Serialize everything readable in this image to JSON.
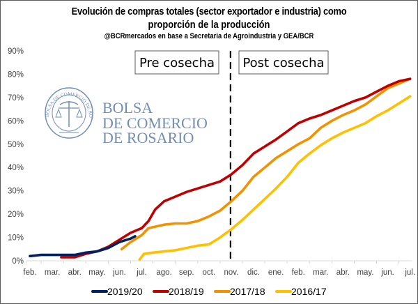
{
  "chart_data": {
    "type": "line",
    "title": "Evolución de compras totales (sector exportador e industria) como",
    "title_line2": "proporción de la producción",
    "subtitle": "@BCRmercados en base a Secretaria de Agroindustria y GEA/BCR",
    "xlabel": "",
    "ylabel": "",
    "ylim": [
      0,
      90
    ],
    "yticks": [
      "0%",
      "10%",
      "20%",
      "30%",
      "40%",
      "50%",
      "60%",
      "70%",
      "80%",
      "90%"
    ],
    "categories": [
      "feb.",
      "mar.",
      "abr.",
      "may.",
      "jun.",
      "jul.",
      "ago.",
      "sep.",
      "oct.",
      "nov.",
      "dic.",
      "ene.",
      "feb.",
      "mar.",
      "abr.",
      "may.",
      "jun.",
      "jul."
    ],
    "grid": false,
    "legend_position": "bottom",
    "annotations": {
      "pre": "Pre cosecha",
      "post": "Post cosecha",
      "divider_category_index": 9
    },
    "series": [
      {
        "name": "2019/20",
        "color": "#002060",
        "points": [
          [
            0,
            2
          ],
          [
            0.5,
            2.5
          ],
          [
            1,
            2.5
          ],
          [
            2,
            2.5
          ],
          [
            2.5,
            3.5
          ],
          [
            3,
            4
          ],
          [
            3.5,
            5.5
          ],
          [
            4,
            8
          ],
          [
            4.5,
            9.5
          ],
          [
            4.7,
            10.5
          ]
        ]
      },
      {
        "name": "2018/19",
        "color": "#C00000",
        "points": [
          [
            1.4,
            1.5
          ],
          [
            2,
            1.5
          ],
          [
            2.5,
            3
          ],
          [
            3,
            4
          ],
          [
            3.5,
            6
          ],
          [
            4,
            9
          ],
          [
            4.5,
            12
          ],
          [
            5,
            14
          ],
          [
            5.3,
            17
          ],
          [
            5.6,
            22
          ],
          [
            6,
            25.5
          ],
          [
            6.5,
            27.5
          ],
          [
            7,
            29.5
          ],
          [
            7.5,
            31
          ],
          [
            8,
            32.5
          ],
          [
            8.5,
            34
          ],
          [
            9,
            37
          ],
          [
            9.5,
            41
          ],
          [
            10,
            46
          ],
          [
            10.5,
            49
          ],
          [
            11,
            52
          ],
          [
            11.5,
            55.5
          ],
          [
            12,
            59
          ],
          [
            12.5,
            61
          ],
          [
            13,
            62.5
          ],
          [
            13.5,
            64.5
          ],
          [
            14,
            66.5
          ],
          [
            14.5,
            68.5
          ],
          [
            15,
            70
          ],
          [
            15.5,
            72.5
          ],
          [
            16,
            75
          ],
          [
            16.5,
            77
          ],
          [
            17,
            78
          ]
        ]
      },
      {
        "name": "2017/18",
        "color": "#F39200",
        "points": [
          [
            4.1,
            5
          ],
          [
            4.5,
            8
          ],
          [
            5,
            11
          ],
          [
            5.3,
            14
          ],
          [
            6,
            15.5
          ],
          [
            6.5,
            16
          ],
          [
            7,
            16
          ],
          [
            7.5,
            17
          ],
          [
            8,
            19
          ],
          [
            8.5,
            21.5
          ],
          [
            9,
            25.5
          ],
          [
            9.5,
            30
          ],
          [
            10,
            36
          ],
          [
            10.5,
            40
          ],
          [
            11,
            44
          ],
          [
            11.5,
            47
          ],
          [
            12,
            50
          ],
          [
            12.5,
            52.5
          ],
          [
            13,
            57
          ],
          [
            13.5,
            60
          ],
          [
            14,
            62.5
          ],
          [
            14.5,
            64.5
          ],
          [
            15,
            67
          ],
          [
            15.5,
            70.5
          ],
          [
            16,
            74
          ],
          [
            16.5,
            76
          ],
          [
            17,
            78
          ]
        ]
      },
      {
        "name": "2016/17",
        "color": "#FFC000",
        "points": [
          [
            4.9,
            0.5
          ],
          [
            5.1,
            3
          ],
          [
            5.5,
            3.5
          ],
          [
            6,
            4
          ],
          [
            6.5,
            4.5
          ],
          [
            7,
            5.5
          ],
          [
            7.5,
            6.5
          ],
          [
            8,
            7
          ],
          [
            8.5,
            10
          ],
          [
            9,
            13.5
          ],
          [
            9.5,
            17.5
          ],
          [
            10,
            22
          ],
          [
            10.5,
            26.5
          ],
          [
            11,
            31
          ],
          [
            11.5,
            36
          ],
          [
            12,
            42
          ],
          [
            12.5,
            46
          ],
          [
            13,
            49.5
          ],
          [
            13.5,
            52.5
          ],
          [
            14,
            55
          ],
          [
            14.5,
            57
          ],
          [
            15,
            59
          ],
          [
            15.5,
            62
          ],
          [
            16,
            64.5
          ],
          [
            16.5,
            67.5
          ],
          [
            17,
            70.5
          ]
        ]
      }
    ]
  },
  "logo": {
    "line1": "BOLSA",
    "line2": "DE COMERCIO",
    "line3": "DE ROSARIO",
    "seal_text": "BOLSA DE COMERCIO DE ROSARIO"
  }
}
